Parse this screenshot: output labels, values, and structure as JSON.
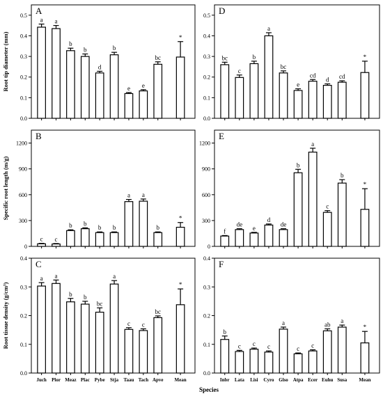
{
  "figure": {
    "xlabel": "Species",
    "row_ylabels": [
      "Root tip diameter (mm)",
      "Specific root length (m/g)",
      "Root tissue density (g/cm³)"
    ]
  },
  "chart_data": [
    {
      "panel": "A",
      "type": "bar",
      "categories": [
        "Juch",
        "Plor",
        "Meaz",
        "Plac",
        "Pybe",
        "Stja",
        "Taau",
        "Tach",
        "Apve",
        "Mean"
      ],
      "values": [
        0.442,
        0.435,
        0.328,
        0.3,
        0.22,
        0.308,
        0.12,
        0.133,
        0.262,
        0.297
      ],
      "errors": [
        0.015,
        0.015,
        0.012,
        0.012,
        0.008,
        0.012,
        0.005,
        0.006,
        0.012,
        0.075
      ],
      "letters": [
        "a",
        "a",
        "b",
        "b",
        "d",
        "b",
        "e",
        "e",
        "bc",
        "*"
      ],
      "ylabel": "Root tip diameter (mm)",
      "ylim": [
        0,
        0.55
      ],
      "yticks": [
        "0.0",
        "0.1",
        "0.2",
        "0.3",
        "0.4",
        "0.5"
      ]
    },
    {
      "panel": "D",
      "type": "bar",
      "categories": [
        "Inbr",
        "Lata",
        "Lisi",
        "Cyro",
        "Glso",
        "Atpa",
        "Ecer",
        "Euhu",
        "Susa",
        "Mean"
      ],
      "values": [
        0.26,
        0.198,
        0.265,
        0.4,
        0.22,
        0.135,
        0.18,
        0.16,
        0.175,
        0.222
      ],
      "errors": [
        0.012,
        0.012,
        0.012,
        0.015,
        0.01,
        0.008,
        0.008,
        0.007,
        0.007,
        0.055
      ],
      "letters": [
        "bc",
        "c",
        "b",
        "a",
        "bc",
        "e",
        "cd",
        "d",
        "cd",
        "*"
      ],
      "ylabel": "",
      "ylim": [
        0,
        0.55
      ],
      "yticks": [
        "0.0",
        "0.1",
        "0.2",
        "0.3",
        "0.4",
        "0.5"
      ]
    },
    {
      "panel": "B",
      "type": "bar",
      "categories": [
        "Juch",
        "Plor",
        "Meaz",
        "Plac",
        "Pybe",
        "Stja",
        "Taau",
        "Tach",
        "Apve",
        "Mean"
      ],
      "values": [
        30,
        28,
        183,
        205,
        160,
        160,
        520,
        525,
        160,
        222
      ],
      "errors": [
        5,
        5,
        10,
        10,
        8,
        8,
        25,
        25,
        8,
        55
      ],
      "letters": [
        "c",
        "c",
        "b",
        "b",
        "b",
        "b",
        "a",
        "a",
        "b",
        "*"
      ],
      "ylabel": "Specific root length (m/g)",
      "ylim": [
        0,
        1350
      ],
      "yticks": [
        "0",
        "300",
        "600",
        "900",
        "1200"
      ]
    },
    {
      "panel": "E",
      "type": "bar",
      "categories": [
        "Inbr",
        "Lata",
        "Lisi",
        "Cyro",
        "Glso",
        "Atpa",
        "Ecer",
        "Euhu",
        "Susa",
        "Mean"
      ],
      "values": [
        120,
        195,
        155,
        248,
        195,
        855,
        1095,
        395,
        735,
        430
      ],
      "errors": [
        6,
        10,
        8,
        12,
        10,
        40,
        45,
        20,
        40,
        240
      ],
      "letters": [
        "f",
        "de",
        "e",
        "d",
        "de",
        "b",
        "a",
        "c",
        "b",
        "*"
      ],
      "ylabel": "",
      "ylim": [
        0,
        1350
      ],
      "yticks": [
        "0",
        "300",
        "600",
        "900",
        "1200"
      ]
    },
    {
      "panel": "C",
      "type": "bar",
      "categories": [
        "Juch",
        "Plor",
        "Meaz",
        "Plac",
        "Pybe",
        "Stja",
        "Taau",
        "Tach",
        "Apve",
        "Mean"
      ],
      "values": [
        0.303,
        0.312,
        0.248,
        0.24,
        0.212,
        0.31,
        0.152,
        0.148,
        0.193,
        0.238
      ],
      "errors": [
        0.012,
        0.012,
        0.012,
        0.01,
        0.015,
        0.012,
        0.006,
        0.006,
        0.006,
        0.055
      ],
      "letters": [
        "a",
        "a",
        "b",
        "b",
        "bc",
        "a",
        "c",
        "c",
        "bc",
        "*"
      ],
      "ylabel": "Root tissue density (g/cm³)",
      "ylim": [
        0,
        0.4
      ],
      "yticks": [
        "0.0",
        "0.1",
        "0.2",
        "0.3",
        "0.4"
      ]
    },
    {
      "panel": "F",
      "type": "bar",
      "categories": [
        "Inbr",
        "Lata",
        "Lisi",
        "Cyro",
        "Glso",
        "Atpa",
        "Ecer",
        "Euhu",
        "Susa",
        "Mean"
      ],
      "values": [
        0.117,
        0.075,
        0.083,
        0.073,
        0.153,
        0.067,
        0.077,
        0.147,
        0.16,
        0.105
      ],
      "errors": [
        0.012,
        0.004,
        0.004,
        0.004,
        0.007,
        0.003,
        0.004,
        0.007,
        0.007,
        0.04
      ],
      "letters": [
        "b",
        "c",
        "c",
        "c",
        "a",
        "c",
        "c",
        "ab",
        "a",
        "*"
      ],
      "ylabel": "",
      "ylim": [
        0,
        0.4
      ],
      "yticks": [
        "0.0",
        "0.1",
        "0.2",
        "0.3",
        "0.4"
      ]
    }
  ]
}
